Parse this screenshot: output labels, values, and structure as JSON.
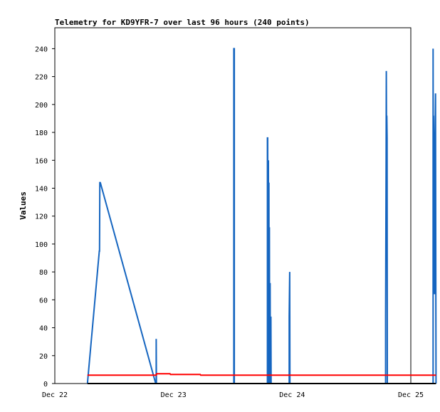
{
  "chart_data": {
    "type": "line",
    "title": "Telemetry for KD9YFR-7 over last 96 hours (240 points)",
    "xlabel": "",
    "ylabel": "Values",
    "x_ticks": [
      "Dec 22",
      "Dec 23",
      "Dec 24",
      "Dec 25"
    ],
    "x_range_hours": [
      0,
      72
    ],
    "y_ticks": [
      0,
      20,
      40,
      60,
      80,
      100,
      120,
      140,
      160,
      180,
      200,
      220,
      240
    ],
    "ylim": [
      0,
      255
    ],
    "grid": false,
    "series": [
      {
        "color": "#1565c0",
        "points": [
          [
            6.6,
            0
          ],
          [
            9.0,
            95
          ],
          [
            9.05,
            95
          ],
          [
            9.1,
            144
          ],
          [
            9.2,
            144
          ],
          [
            20.4,
            0
          ],
          [
            20.5,
            0
          ],
          [
            20.5,
            32
          ],
          [
            20.55,
            0
          ],
          [
            20.6,
            0
          ],
          [
            36.2,
            0
          ],
          [
            36.2,
            240
          ],
          [
            36.3,
            240
          ],
          [
            36.3,
            0
          ],
          [
            43.0,
            0
          ],
          [
            43.0,
            176
          ],
          [
            43.05,
            176
          ],
          [
            43.1,
            0
          ],
          [
            43.2,
            160
          ],
          [
            43.25,
            0
          ],
          [
            43.3,
            144
          ],
          [
            43.35,
            0
          ],
          [
            43.4,
            112
          ],
          [
            43.45,
            0
          ],
          [
            43.55,
            72
          ],
          [
            43.6,
            0
          ],
          [
            43.7,
            48
          ],
          [
            43.75,
            0
          ],
          [
            47.4,
            0
          ],
          [
            47.4,
            48
          ],
          [
            47.5,
            80
          ],
          [
            47.55,
            0
          ],
          [
            66.9,
            0
          ],
          [
            66.9,
            48
          ],
          [
            67.0,
            160
          ],
          [
            67.05,
            224
          ],
          [
            67.1,
            160
          ],
          [
            67.15,
            192
          ],
          [
            67.2,
            176
          ],
          [
            67.25,
            0
          ],
          [
            76.5,
            0
          ],
          [
            76.5,
            240
          ],
          [
            76.55,
            112
          ],
          [
            76.6,
            192
          ],
          [
            76.7,
            144
          ],
          [
            76.75,
            152
          ],
          [
            76.8,
            64
          ],
          [
            76.85,
            168
          ],
          [
            76.9,
            176
          ],
          [
            77.0,
            208
          ],
          [
            77.05,
            80
          ],
          [
            77.1,
            0
          ]
        ]
      },
      {
        "color": "#ff0000",
        "points": [
          [
            6.6,
            6
          ],
          [
            20.5,
            6
          ],
          [
            20.6,
            7
          ],
          [
            23.3,
            7
          ],
          [
            23.4,
            6.5
          ],
          [
            29.4,
            6.5
          ],
          [
            29.5,
            6
          ],
          [
            77.1,
            6
          ]
        ]
      },
      {
        "color": "#000000",
        "points": [
          [
            6.6,
            0
          ],
          [
            77.1,
            0
          ]
        ]
      }
    ]
  }
}
